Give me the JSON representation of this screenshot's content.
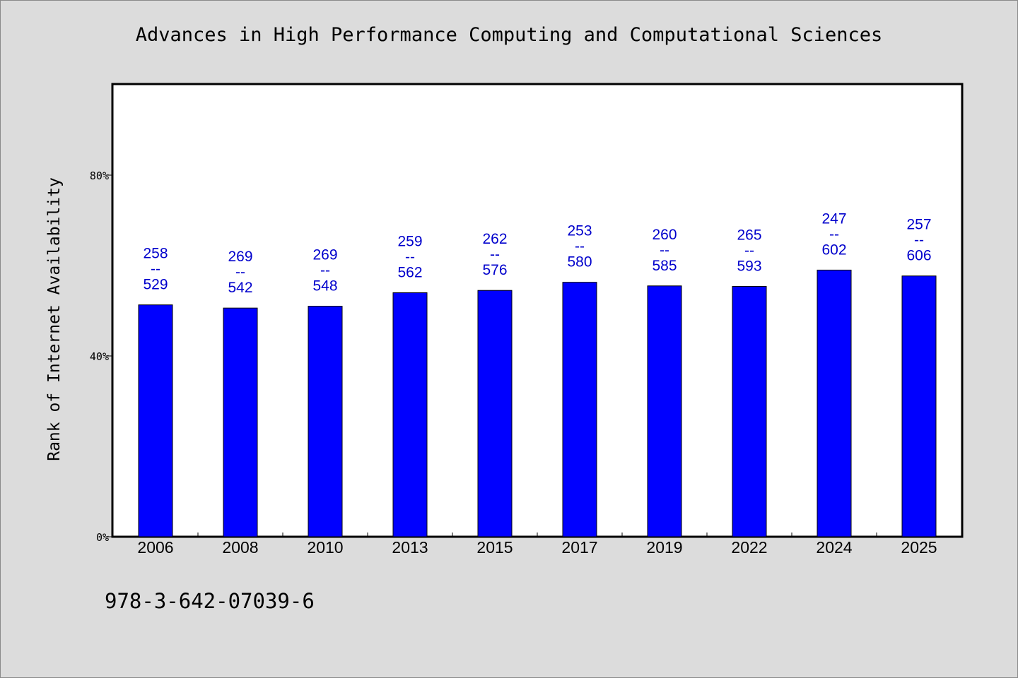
{
  "chart_data": {
    "type": "bar",
    "title": "Advances in High Performance Computing and Computational Sciences",
    "ylabel": "Rank of Internet Availability",
    "categories": [
      "2006",
      "2008",
      "2010",
      "2013",
      "2015",
      "2017",
      "2019",
      "2022",
      "2024",
      "2025"
    ],
    "values": [
      51.3,
      50.6,
      51.0,
      54.0,
      54.5,
      56.3,
      55.5,
      55.4,
      59.0,
      57.7
    ],
    "bar_labels": [
      {
        "top": "258",
        "sep": "--",
        "bottom": "529"
      },
      {
        "top": "269",
        "sep": "--",
        "bottom": "542"
      },
      {
        "top": "269",
        "sep": "--",
        "bottom": "548"
      },
      {
        "top": "259",
        "sep": "--",
        "bottom": "562"
      },
      {
        "top": "262",
        "sep": "--",
        "bottom": "576"
      },
      {
        "top": "253",
        "sep": "--",
        "bottom": "580"
      },
      {
        "top": "260",
        "sep": "--",
        "bottom": "585"
      },
      {
        "top": "265",
        "sep": "--",
        "bottom": "593"
      },
      {
        "top": "247",
        "sep": "--",
        "bottom": "602"
      },
      {
        "top": "257",
        "sep": "--",
        "bottom": "606"
      }
    ],
    "y_ticks": [
      "0%",
      "40%",
      "80%"
    ],
    "y_tick_values": [
      0,
      40,
      80
    ],
    "ylim": [
      0,
      100
    ],
    "grid": false,
    "bar_color": "#0000ff",
    "label_color": "#0000cc"
  },
  "footer": {
    "isbn": "978-3-642-07039-6"
  }
}
